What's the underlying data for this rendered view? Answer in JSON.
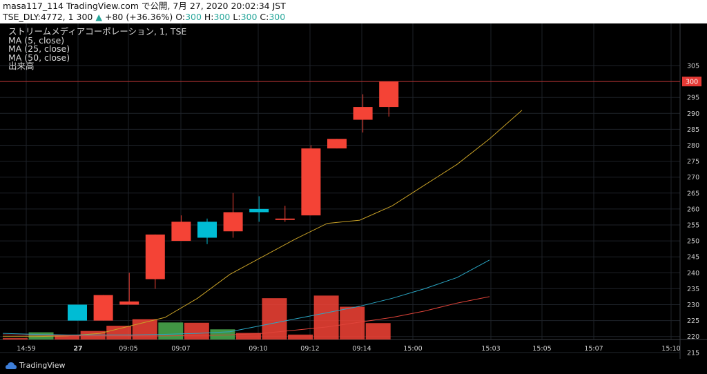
{
  "header": {
    "line1": "masa117_114 TradingView.com で公開, 7月 27, 2020 20:02:34 JST",
    "symbol": "TSE_DLY:4772, 1",
    "price": "300",
    "arrow": "▲",
    "change": "+80 (+36.36%)",
    "o_label": "O:",
    "o_val": "300",
    "h_label": "H:",
    "h_val": "300",
    "l_label": "L:",
    "l_val": "300",
    "c_label": "C:",
    "c_val": "300"
  },
  "legend": {
    "title": "ストリームメディアコーポレーション, 1, TSE",
    "ma5": "MA (5, close)",
    "ma25": "MA (25, close)",
    "ma50": "MA (50, close)",
    "volume": "出来高"
  },
  "footer": {
    "brand": "TradingView"
  },
  "chart_data": {
    "type": "candlestick",
    "yaxis": {
      "ticks": [
        215,
        220,
        225,
        230,
        235,
        240,
        245,
        250,
        255,
        260,
        265,
        270,
        275,
        280,
        285,
        290,
        295,
        300,
        305
      ],
      "price_label": "300",
      "price_line": 300
    },
    "xaxis": {
      "labels": [
        "14:59",
        "27",
        "09:05",
        "09:07",
        "09:10",
        "09:12",
        "09:14",
        "15:00",
        "15:03",
        "15:05",
        "15:07",
        "15:10"
      ],
      "bold_label": "27"
    },
    "candles": [
      {
        "o": 225,
        "h": 230,
        "l": 225,
        "c": 230,
        "dir": "up"
      },
      {
        "o": 233,
        "h": 233,
        "l": 225,
        "c": 225,
        "dir": "down"
      },
      {
        "o": 231,
        "h": 240,
        "l": 230,
        "c": 230,
        "dir": "down"
      },
      {
        "o": 252,
        "h": 252,
        "l": 235,
        "c": 238,
        "dir": "down"
      },
      {
        "o": 256,
        "h": 258,
        "l": 250,
        "c": 250,
        "dir": "down"
      },
      {
        "o": 251,
        "h": 257,
        "l": 249,
        "c": 256,
        "dir": "up"
      },
      {
        "o": 259,
        "h": 265,
        "l": 251,
        "c": 253,
        "dir": "down"
      },
      {
        "o": 259,
        "h": 264,
        "l": 256,
        "c": 260,
        "dir": "up"
      },
      {
        "o": 257,
        "h": 261,
        "l": 256,
        "c": 257,
        "dir": "down"
      },
      {
        "o": 279,
        "h": 280,
        "l": 258,
        "c": 258,
        "dir": "down"
      },
      {
        "o": 282,
        "h": 282,
        "l": 279,
        "c": 279,
        "dir": "down"
      },
      {
        "o": 292,
        "h": 296,
        "l": 284,
        "c": 288,
        "dir": "down"
      },
      {
        "o": 300,
        "h": 300,
        "l": 289,
        "c": 292,
        "dir": "down"
      }
    ],
    "volume": [
      {
        "v": 0.2,
        "dir": "down"
      },
      {
        "v": 1.1,
        "dir": "up"
      },
      {
        "v": 0.65,
        "dir": "down"
      },
      {
        "v": 1.3,
        "dir": "down"
      },
      {
        "v": 2.1,
        "dir": "down"
      },
      {
        "v": 3.1,
        "dir": "down"
      },
      {
        "v": 2.6,
        "dir": "up"
      },
      {
        "v": 2.55,
        "dir": "down"
      },
      {
        "v": 1.55,
        "dir": "up"
      },
      {
        "v": 1.0,
        "dir": "down"
      },
      {
        "v": 6.3,
        "dir": "down"
      },
      {
        "v": 0.75,
        "dir": "down"
      },
      {
        "v": 6.7,
        "dir": "down"
      },
      {
        "v": 5.0,
        "dir": "down"
      },
      {
        "v": 2.5,
        "dir": "down"
      }
    ],
    "series": [
      {
        "name": "MA (5, close)",
        "color": "#c9a227",
        "values": [
          220.0,
          220.0,
          220.2,
          221,
          223.5,
          226,
          232,
          239.5,
          245,
          250.5,
          255.5,
          256.5,
          261,
          267.5,
          274,
          282,
          291
        ]
      },
      {
        "name": "MA (25, close)",
        "color": "#2aa6c4",
        "values": [
          221,
          220.7,
          220.5,
          220.5,
          220.5,
          220.7,
          221,
          221.5,
          223.5,
          225.5,
          227.5,
          229.5,
          232,
          235,
          238.5,
          244
        ]
      },
      {
        "name": "MA (50, close)",
        "color": "#e0443a",
        "values": [
          220.5,
          220.4,
          220.3,
          220.2,
          220.2,
          220.2,
          220.3,
          220.5,
          221,
          222,
          223,
          224.5,
          226,
          228,
          230.5,
          232.5
        ]
      }
    ],
    "colors": {
      "up": "#00bcd4",
      "down": "#f44336",
      "vol_up": "#4caf50",
      "vol_down": "#f44336",
      "ma5": "#c9a227",
      "ma25": "#2aa6c4",
      "ma50": "#e0443a",
      "grid": "#1e2229",
      "price_line": "#e53935"
    }
  }
}
